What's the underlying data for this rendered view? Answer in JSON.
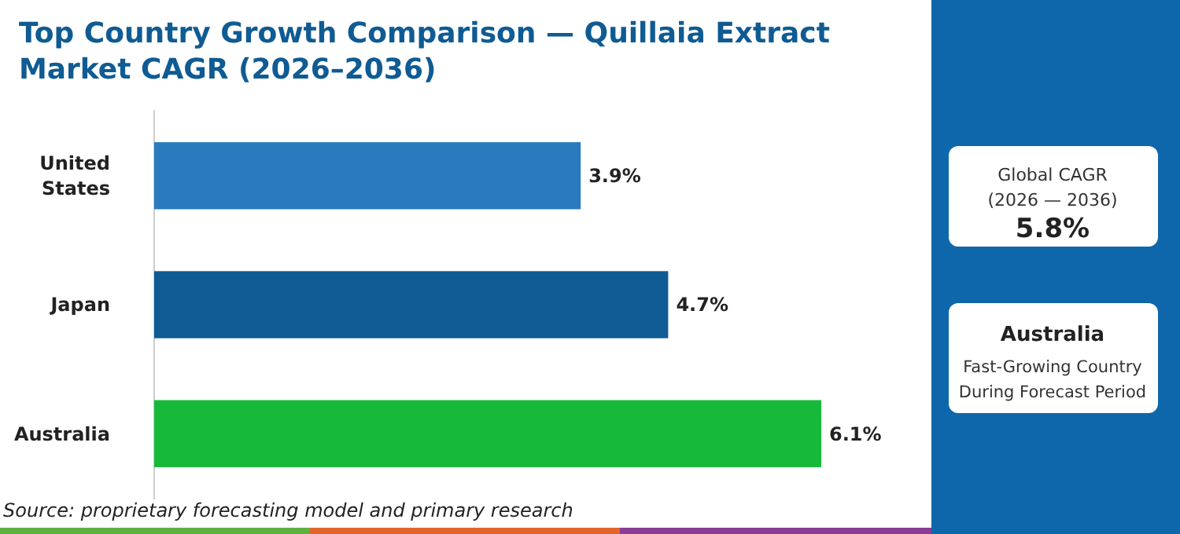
{
  "chart_data": {
    "type": "bar",
    "orientation": "horizontal",
    "title": "Top Country Growth Comparison — Quillaia Extract Market CAGR (2026–2036)",
    "categories": [
      "United States",
      "Japan",
      "Australia"
    ],
    "values": [
      3.9,
      4.7,
      6.1
    ],
    "colors": [
      "#2a7bbd",
      "#0f5b93",
      "#16b93a"
    ],
    "data_labels": true,
    "value_labels": [
      "3.9%",
      "4.7%",
      "6.1%"
    ],
    "annotations": [
      "Source: proprietary forecasting model and primary research",
      "Global CAGR",
      "(2026 — 2036)",
      "5.8%",
      "Australia",
      "Fast-Growing Country",
      "During Forecast Period"
    ]
  }
}
